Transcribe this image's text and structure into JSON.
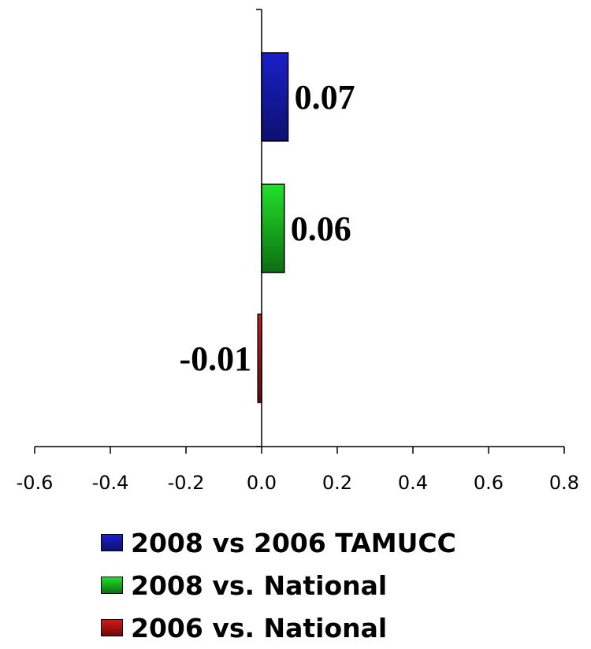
{
  "chart_data": {
    "type": "bar",
    "orientation": "horizontal",
    "xlim": [
      -0.6,
      0.8
    ],
    "xticks": [
      "-0.6",
      "-0.4",
      "-0.2",
      "0.0",
      "0.2",
      "0.4",
      "0.6",
      "0.8"
    ],
    "grid": false,
    "legend_position": "bottom",
    "series": [
      {
        "name": "2008 vs 2006 TAMUCC",
        "value": 0.07,
        "label": "0.07",
        "color": "#1a1fc8",
        "dark": "#0c1170"
      },
      {
        "name": "2008 vs. National",
        "value": 0.06,
        "label": "0.06",
        "color": "#22e02a",
        "dark": "#0d6e12"
      },
      {
        "name": "2006 vs. National",
        "value": -0.01,
        "label": "-0.01",
        "color": "#d81818",
        "dark": "#6b0a0a"
      }
    ]
  }
}
